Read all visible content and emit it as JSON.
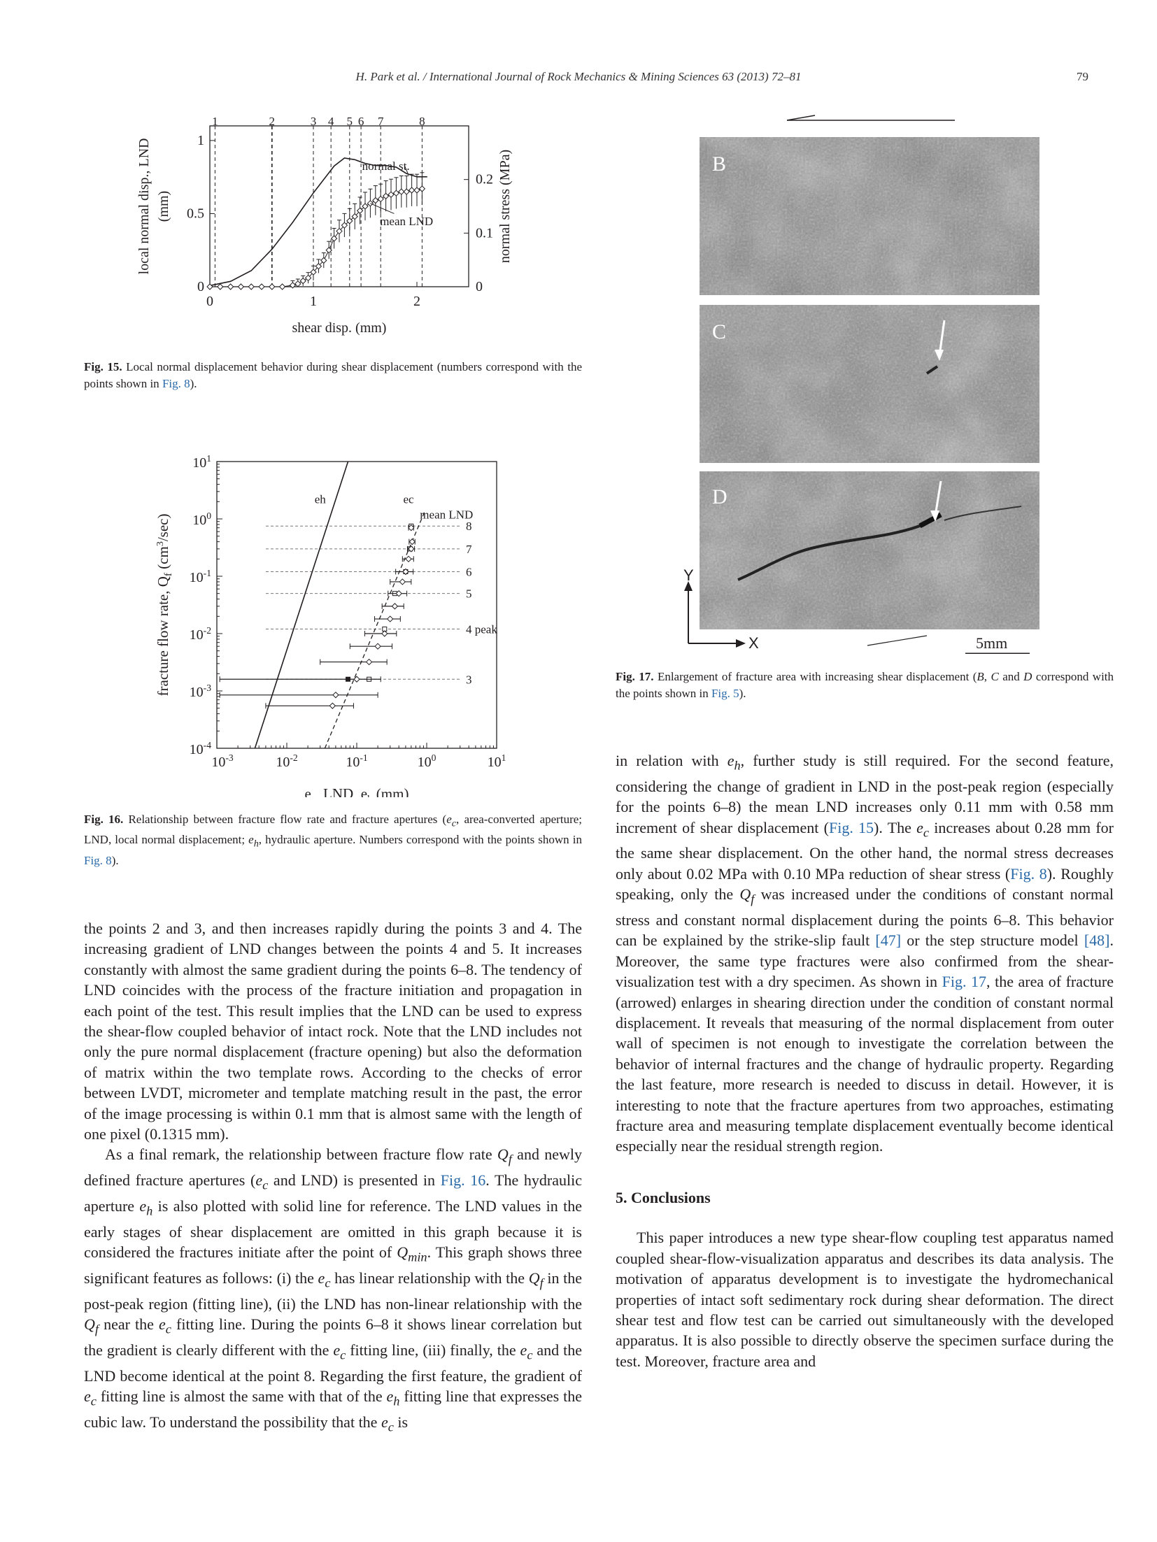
{
  "header": {
    "running_title": "H. Park et al. / International Journal of Rock Mechanics & Mining Sciences 63 (2013) 72–81",
    "page_number": "79"
  },
  "fig15": {
    "caption_label": "Fig. 15.",
    "caption_text": "Local normal displacement behavior during shear displacement (numbers correspond with the points shown in ",
    "caption_link": "Fig. 8",
    "caption_end": ").",
    "chart_data": {
      "type": "line",
      "xlabel": "shear disp. (mm)",
      "ylabel_left": "local normal disp., LND (mm)",
      "ylabel_right": "normal stress (MPa)",
      "xlim": [
        0,
        2.5
      ],
      "ylim_left": [
        0,
        1.1
      ],
      "ylim_right": [
        0,
        0.3
      ],
      "xticks": [
        "0",
        "1",
        "2"
      ],
      "yticks_left": [
        "0",
        "0.5",
        "1"
      ],
      "yticks_right": [
        "0",
        "0.1",
        "0.2"
      ],
      "series": [
        {
          "name": "normal st.",
          "axis": "right",
          "x": [
            0,
            0.2,
            0.4,
            0.6,
            0.8,
            1.0,
            1.1,
            1.2,
            1.3,
            1.4,
            1.5,
            1.6,
            1.7,
            1.8,
            1.9,
            2.0,
            2.1
          ],
          "values": [
            0.002,
            0.01,
            0.03,
            0.07,
            0.12,
            0.175,
            0.2,
            0.225,
            0.24,
            0.237,
            0.23,
            0.226,
            0.226,
            0.223,
            0.211,
            0.205,
            0.205
          ]
        },
        {
          "name": "mean LND",
          "axis": "left",
          "x": [
            0,
            0.1,
            0.2,
            0.3,
            0.4,
            0.5,
            0.6,
            0.7,
            0.8,
            0.85,
            0.9,
            0.95,
            1.0,
            1.05,
            1.1,
            1.15,
            1.2,
            1.25,
            1.3,
            1.35,
            1.4,
            1.45,
            1.5,
            1.55,
            1.6,
            1.65,
            1.7,
            1.75,
            1.8,
            1.85,
            1.9,
            1.95,
            2.0,
            2.05
          ],
          "values": [
            0,
            0,
            0,
            0,
            0,
            0,
            0,
            0,
            0.01,
            0.02,
            0.04,
            0.06,
            0.1,
            0.14,
            0.18,
            0.25,
            0.33,
            0.38,
            0.42,
            0.45,
            0.48,
            0.52,
            0.55,
            0.57,
            0.59,
            0.6,
            0.62,
            0.63,
            0.64,
            0.65,
            0.65,
            0.66,
            0.66,
            0.67
          ]
        }
      ],
      "markers": {
        "labels": [
          "1",
          "2",
          "3",
          "4",
          "5",
          "6",
          "7",
          "8"
        ],
        "x": [
          0.05,
          0.6,
          1.0,
          1.17,
          1.35,
          1.46,
          1.65,
          2.05
        ]
      },
      "annotations": [
        "normal st.",
        "mean LND"
      ]
    }
  },
  "fig16": {
    "caption_label": "Fig. 16.",
    "caption_p1": "Relationship between fracture flow rate and fracture apertures (",
    "caption_ec": "e",
    "caption_ec_sub": "c",
    "caption_p2": ", area-converted aperture; LND, local normal displacement; ",
    "caption_eh": "e",
    "caption_eh_sub": "h",
    "caption_p3": ", hydraulic aperture. Numbers correspond with the points shown in ",
    "caption_link": "Fig. 8",
    "caption_end": ").",
    "chart_data": {
      "type": "scatter",
      "xlabel": "ec, LND, eh (mm)",
      "ylabel": "fracture flow rate, Qf (cm3/sec)",
      "xscale": "log",
      "yscale": "log",
      "xlim": [
        0.001,
        10
      ],
      "ylim": [
        0.0001,
        10
      ],
      "xticks": [
        "10-3",
        "10-2",
        "10-1",
        "100",
        "101"
      ],
      "yticks": [
        "10-4",
        "10-3",
        "10-2",
        "10-1",
        "100",
        "101"
      ],
      "line_labels": [
        "eh",
        "ec",
        "mean LND"
      ],
      "point_labels": [
        "8",
        "7",
        "6",
        "5",
        "4 peak",
        "3"
      ],
      "point_label_y": [
        0.75,
        0.3,
        0.12,
        0.05,
        0.012,
        0.0016
      ],
      "ec_points": {
        "x": [
          0.6,
          0.58,
          0.5,
          0.35,
          0.25,
          0.15,
          0.075
        ],
        "y": [
          0.75,
          0.3,
          0.12,
          0.05,
          0.012,
          0.0016,
          0.0016
        ]
      },
      "lnd_points": {
        "x": [
          0.6,
          0.62,
          0.6,
          0.55,
          0.5,
          0.45,
          0.4,
          0.35,
          0.3,
          0.25,
          0.2,
          0.15,
          0.1,
          0.05
        ],
        "y": [
          0.7,
          0.4,
          0.3,
          0.2,
          0.12,
          0.08,
          0.05,
          0.03,
          0.018,
          0.01,
          0.006,
          0.0032,
          0.0016,
          0.00085
        ]
      },
      "lnd_xerr": [
        0.05,
        0.06,
        0.07,
        0.1,
        0.14,
        0.15,
        0.12,
        0.12,
        0.12,
        0.12,
        0.12,
        0.12,
        0.12,
        0.15
      ],
      "extra_point": {
        "x": 0.045,
        "y": 0.00055,
        "xerr_low": 0.005,
        "xerr_high": 0.09
      }
    }
  },
  "fig17": {
    "arrow_label": "",
    "panel_labels": [
      "B",
      "C",
      "D"
    ],
    "axis_y": "Y",
    "axis_x": "X",
    "scale": "5mm",
    "caption_label": "Fig. 17.",
    "caption_p1": "Enlargement of fracture area with increasing shear displacement (",
    "caption_b": "B",
    "caption_c": "C",
    "caption_and": " and ",
    "caption_d": "D",
    "caption_p2": " correspond with the points shown in ",
    "caption_link": "Fig. 5",
    "caption_end": ")."
  },
  "left_col": {
    "p1": "the points 2 and 3, and then increases rapidly during the points 3 and 4. The increasing gradient of LND changes between the points 4 and 5. It increases constantly with almost the same gradient during the points 6–8. The tendency of LND coincides with the process of the fracture initiation and propagation in each point of the test. This result implies that the LND can be used to express the shear-flow coupled behavior of intact rock. Note that the LND includes not only the pure normal displacement (fracture opening) but also the deformation of matrix within the two template rows. According to the checks of error between LVDT, micrometer and template matching result in the past, the error of the image processing is within 0.1 mm that is almost same with the length of one pixel (0.1315 mm).",
    "p2a": "As a final remark, the relationship between fracture flow rate ",
    "p2b": " and newly defined fracture apertures (",
    "p2c": " and LND) is presented in ",
    "p2_link": "Fig. 16",
    "p2d": ". The hydraulic aperture ",
    "p2e": " is also plotted with solid line for reference. The LND values in the early stages of shear displacement are omitted in this graph because it is considered the fractures initiate after the point of ",
    "p2f": ". This graph shows three significant features as follows: (i) the ",
    "p2g": " has linear relationship with the ",
    "p2h": " in the post-peak region (fitting line), (ii) the LND has non-linear relationship with the ",
    "p2i": " near the ",
    "p2j": " fitting line. During the points 6–8 it shows linear correlation but the gradient is clearly different with the ",
    "p2k": " fitting line, (iii) finally, the ",
    "p2l": " and the LND become identical at the point 8. Regarding the first feature, the gradient of ",
    "p2m": " fitting line is almost the same with that of the ",
    "p2n": " fitting line that expresses the cubic law. To understand the possibility that the ",
    "p2o": " is"
  },
  "right_col": {
    "p1a": "in relation with ",
    "p1b": ", further study is still required. For the second feature, considering the change of gradient in LND in the post-peak region (especially for the points 6–8) the mean LND increases only 0.11 mm with 0.58 mm increment of shear displacement (",
    "p1_link1": "Fig. 15",
    "p1c": "). The ",
    "p1d": " increases about 0.28 mm for the same shear displacement. On the other hand, the normal stress decreases only about 0.02 MPa with 0.10 MPa reduction of shear stress (",
    "p1_link2": "Fig. 8",
    "p1e": "). Roughly speaking, only the ",
    "p1f": " was increased under the conditions of constant normal stress and constant normal displacement during the points 6–8. This behavior can be explained by the strike-slip fault ",
    "p1_ref47": "[47]",
    "p1g": " or the step structure model ",
    "p1_ref48": "[48]",
    "p1h": ". Moreover, the same type fractures were also confirmed from the shear-visualization test with a dry specimen. As shown in ",
    "p1_link3": "Fig. 17",
    "p1i": ", the area of fracture (arrowed) enlarges in shearing direction under the condition of constant normal displacement. It reveals that measuring of the normal displacement from outer wall of specimen is not enough to investigate the correlation between the behavior of internal fractures and the change of hydraulic property. Regarding the last feature, more research is needed to discuss in detail. However, it is interesting to note that the fracture apertures from two approaches, estimating fracture area and measuring template displacement eventually become identical especially near the residual strength region.",
    "section_title": "5.  Conclusions",
    "p2": "This paper introduces a new type shear-flow coupling test apparatus named coupled shear-flow-visualization apparatus and describes its data analysis. The motivation of apparatus development is to investigate the hydromechanical properties of intact soft sedimentary rock during shear deformation. The direct shear test and flow test can be carried out simultaneously with the developed apparatus. It is also possible to directly observe the specimen surface during the test. Moreover, fracture area and"
  },
  "sym": {
    "e": "e",
    "c": "c",
    "h": "h",
    "Q": "Q",
    "f": "f",
    "min": "min"
  },
  "colors": {
    "link": "#2a6aa8",
    "text": "#231f20",
    "photo_gray": "#808080"
  }
}
